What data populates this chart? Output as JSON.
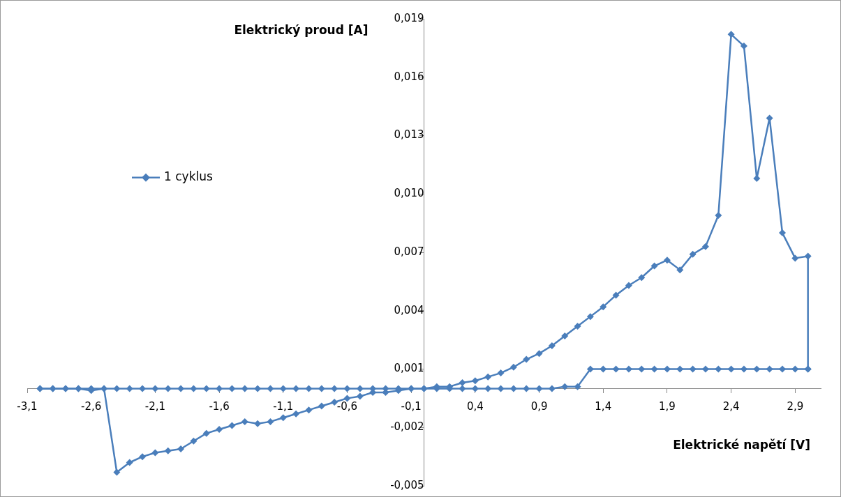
{
  "chart_data": {
    "type": "line",
    "xlabel": "Elektrické napětí [V]",
    "ylabel": "Elektrický proud [A]",
    "xlim": [
      -3.1,
      3.1
    ],
    "xticks": [
      {
        "value": -3.1,
        "label": "-3,1"
      },
      {
        "value": -2.6,
        "label": "-2,6"
      },
      {
        "value": -2.1,
        "label": "-2,1"
      },
      {
        "value": -1.6,
        "label": "-1,6"
      },
      {
        "value": -1.1,
        "label": "-1,1"
      },
      {
        "value": -0.6,
        "label": "-0,6"
      },
      {
        "value": -0.1,
        "label": "-0,1"
      },
      {
        "value": 0.4,
        "label": "0,4"
      },
      {
        "value": 0.9,
        "label": "0,9"
      },
      {
        "value": 1.4,
        "label": "1,4"
      },
      {
        "value": 1.9,
        "label": "1,9"
      },
      {
        "value": 2.4,
        "label": "2,4"
      },
      {
        "value": 2.9,
        "label": "2,9"
      }
    ],
    "ylim": [
      -0.005,
      0.019
    ],
    "yticks": [
      {
        "value": -0.005,
        "label": "-0,005"
      },
      {
        "value": -0.002,
        "label": "-0,002"
      },
      {
        "value": 0.001,
        "label": "0,001"
      },
      {
        "value": 0.004,
        "label": "0,004"
      },
      {
        "value": 0.007,
        "label": "0,007"
      },
      {
        "value": 0.01,
        "label": "0,010"
      },
      {
        "value": 0.013,
        "label": "0,013"
      },
      {
        "value": 0.016,
        "label": "0,016"
      },
      {
        "value": 0.019,
        "label": "0,019"
      }
    ],
    "grid": false,
    "legend": "left",
    "marker": "diamond",
    "line_style": "solid",
    "series": [
      {
        "name": "1 cyklus",
        "color": "#4a7ebb",
        "x": [
          -3.0,
          -2.9,
          -2.8,
          -2.7,
          -2.6,
          -2.5,
          -2.4,
          -2.3,
          -2.2,
          -2.1,
          -2.0,
          -1.9,
          -1.8,
          -1.7,
          -1.6,
          -1.5,
          -1.4,
          -1.3,
          -1.2,
          -1.1,
          -1.0,
          -0.9,
          -0.8,
          -0.7,
          -0.6,
          -0.5,
          -0.4,
          -0.3,
          -0.2,
          -0.1,
          0.0,
          0.1,
          0.2,
          0.3,
          0.4,
          0.5,
          0.6,
          0.7,
          0.8,
          0.9,
          1.0,
          1.1,
          1.2,
          1.3,
          1.4,
          1.5,
          1.6,
          1.7,
          1.8,
          1.9,
          2.0,
          2.1,
          2.2,
          2.3,
          2.4,
          2.5,
          2.6,
          2.7,
          2.8,
          2.9,
          3.0
        ],
        "values": [
          0,
          0,
          0,
          0,
          0,
          0,
          0,
          0,
          0,
          0,
          0,
          0,
          0,
          0,
          0,
          0,
          0,
          0,
          0,
          0,
          0,
          0,
          0,
          0,
          0,
          0,
          0,
          0,
          0,
          0,
          0,
          0,
          0,
          0,
          0,
          0,
          0,
          0,
          0,
          0,
          0,
          0.0001,
          0.0001,
          0.001,
          0.001,
          0.001,
          0.001,
          0.001,
          0.001,
          0.001,
          0.001,
          0.001,
          0.001,
          0.001,
          0.001,
          0.001,
          0.001,
          0.001,
          0.001,
          0.001,
          0.001
        ]
      },
      {
        "color": "#4a7ebb",
        "x": [
          3.0,
          3.0,
          2.9,
          2.8,
          2.7,
          2.6,
          2.5,
          2.4,
          2.3,
          2.2,
          2.1,
          2.0,
          1.9,
          1.8,
          1.7,
          1.6,
          1.5,
          1.4,
          1.3,
          1.2,
          1.1,
          1.0,
          0.9,
          0.8,
          0.7,
          0.6,
          0.5,
          0.4,
          0.3,
          0.2,
          0.1,
          0.0,
          -0.1,
          -0.2,
          -0.3,
          -0.4,
          -0.5,
          -0.6,
          -0.7,
          -0.8,
          -0.9,
          -1.0,
          -1.1,
          -1.2,
          -1.3,
          -1.4,
          -1.5,
          -1.6,
          -1.7,
          -1.8,
          -1.9,
          -2.0,
          -2.1,
          -2.2,
          -2.3,
          -2.4,
          -2.5,
          -2.6,
          -2.7,
          -2.8,
          -2.9,
          -3.0
        ],
        "values": [
          0.001,
          0.0068,
          0.0067,
          0.008,
          0.0139,
          0.0108,
          0.0176,
          0.0182,
          0.0089,
          0.0073,
          0.0069,
          0.0061,
          0.0066,
          0.0063,
          0.0057,
          0.0053,
          0.0048,
          0.0042,
          0.0037,
          0.0032,
          0.0027,
          0.0022,
          0.0018,
          0.0015,
          0.0011,
          0.0008,
          0.0006,
          0.0004,
          0.0003,
          0.0001,
          0.0001,
          0,
          0,
          -0.0001,
          -0.0002,
          -0.0002,
          -0.0004,
          -0.0005,
          -0.0007,
          -0.0009,
          -0.0011,
          -0.0013,
          -0.0015,
          -0.0017,
          -0.0018,
          -0.0017,
          -0.0019,
          -0.0021,
          -0.0023,
          -0.0027,
          -0.0031,
          -0.0032,
          -0.0033,
          -0.0035,
          -0.0038,
          -0.0043,
          0,
          -0.0001,
          0,
          0,
          0,
          0
        ]
      }
    ]
  }
}
